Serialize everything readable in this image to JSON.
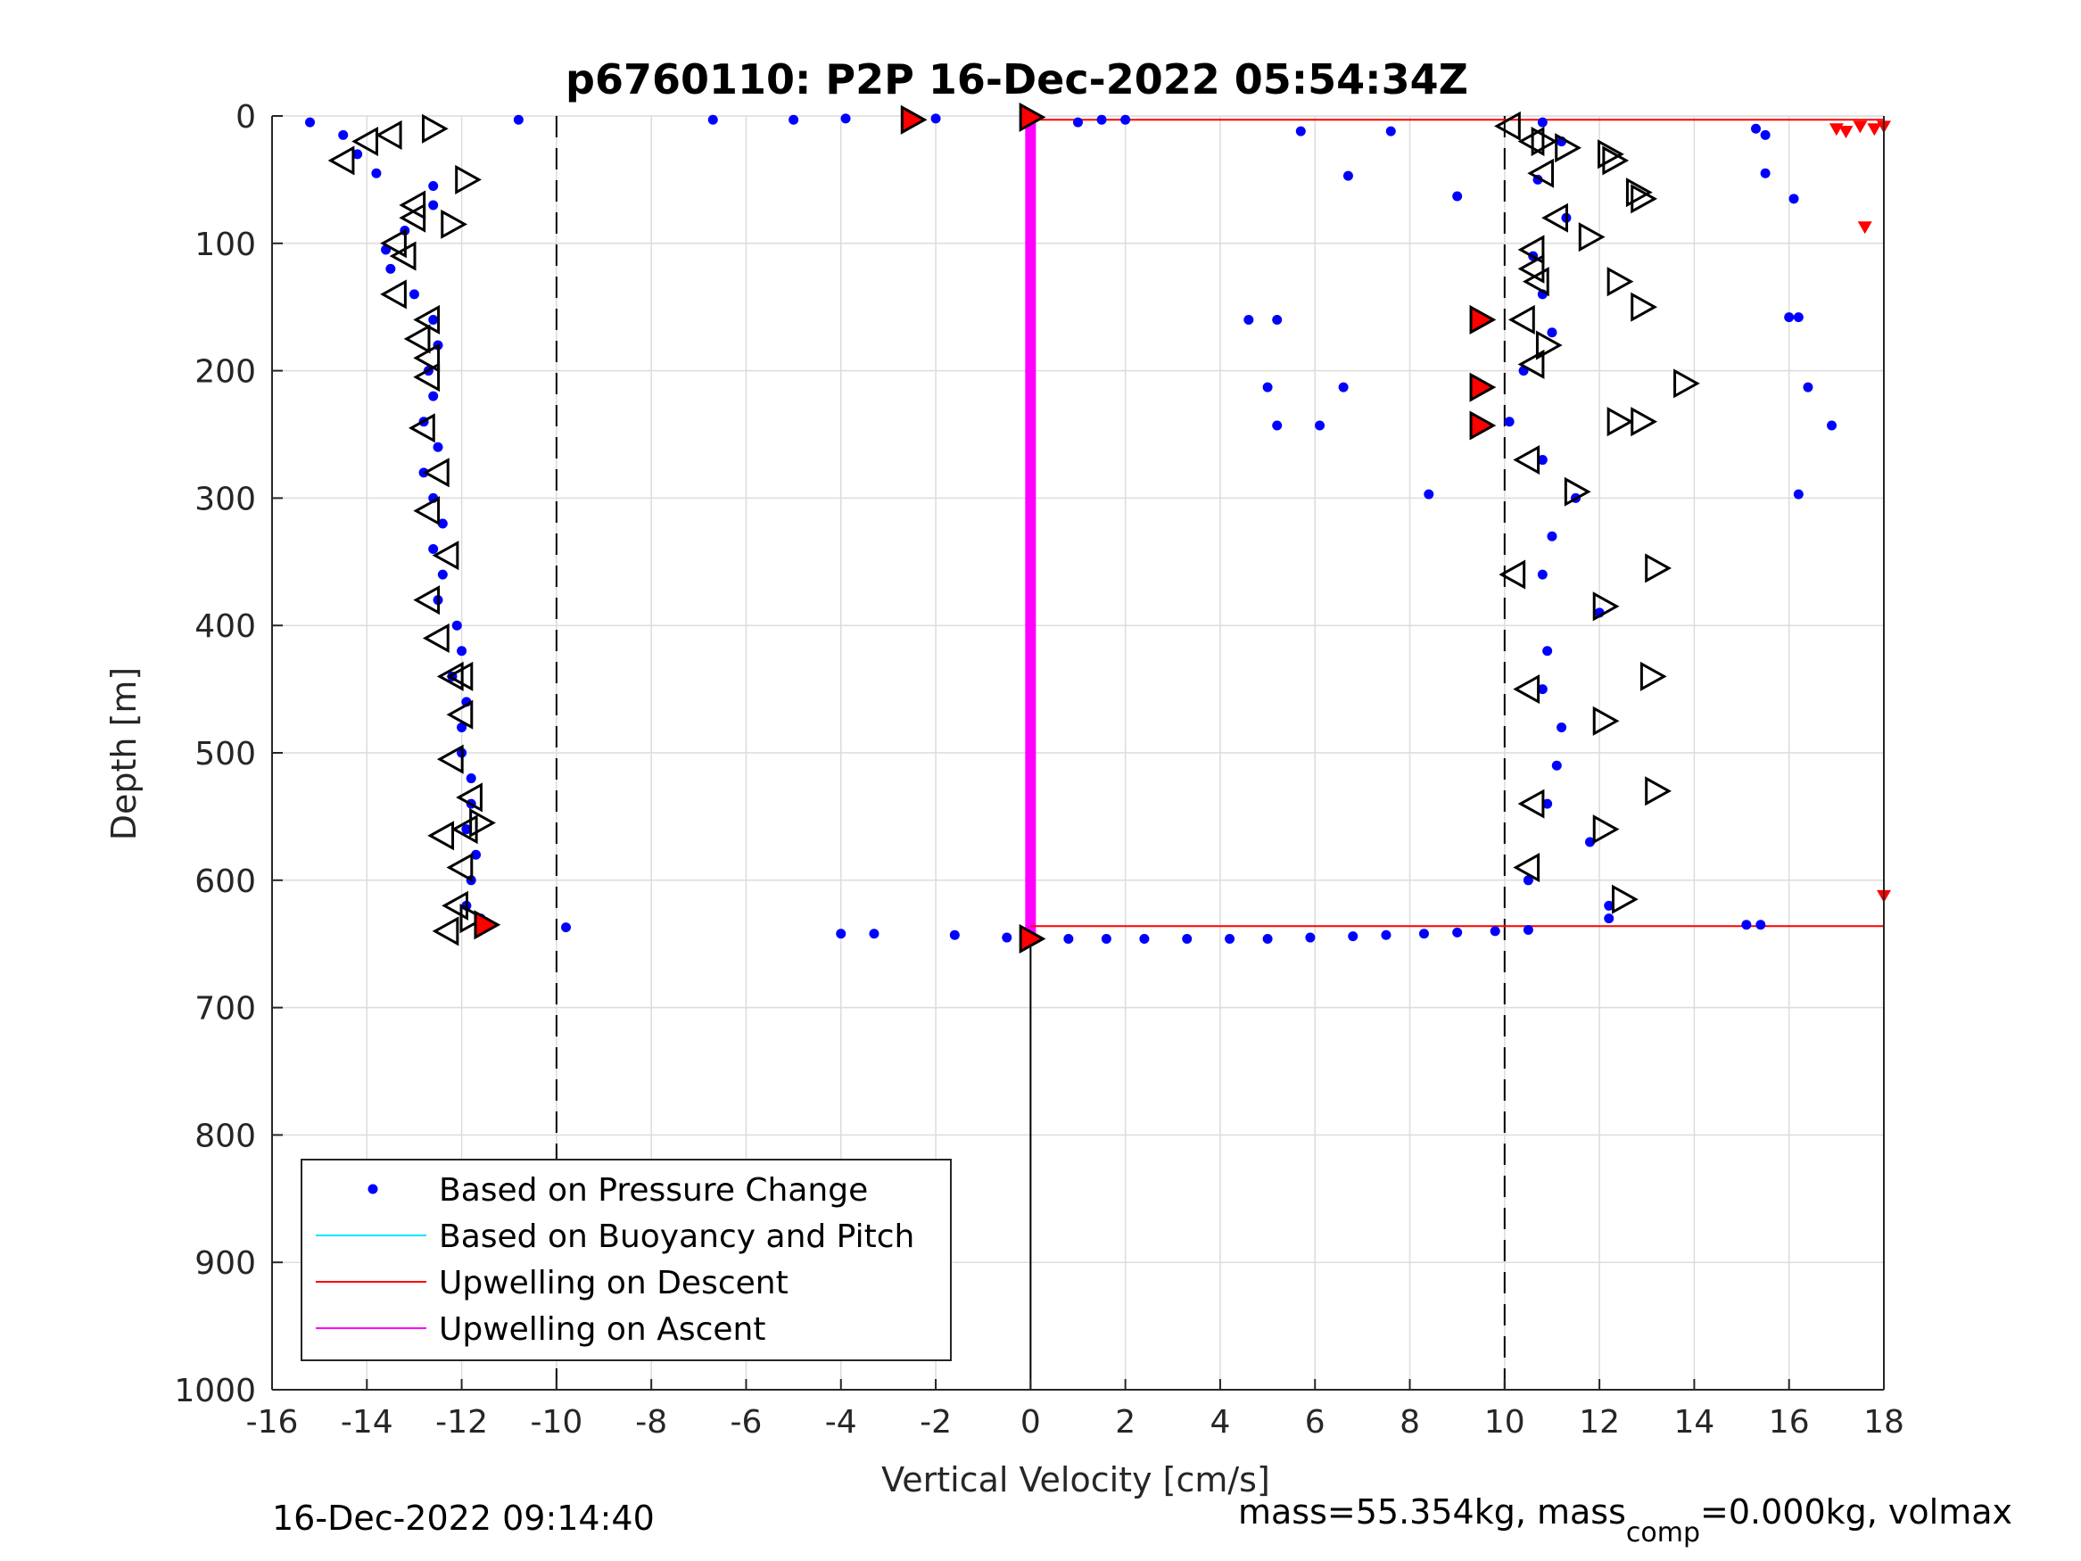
{
  "chart_data": {
    "type": "scatter",
    "title": "p6760110: P2P 16-Dec-2022 05:54:34Z",
    "xlabel": "Vertical Velocity [cm/s]",
    "ylabel": "Depth [m]",
    "xlim": [
      -16,
      18
    ],
    "ylim": [
      0,
      1000
    ],
    "y_reversed": true,
    "grid": true,
    "legend_position": "bottom-left",
    "xticks": [
      "-16",
      "-14",
      "-12",
      "-10",
      "-8",
      "-6",
      "-4",
      "-2",
      "0",
      "2",
      "4",
      "6",
      "8",
      "10",
      "12",
      "14",
      "16",
      "18"
    ],
    "yticks": [
      "0",
      "100",
      "200",
      "300",
      "400",
      "500",
      "600",
      "700",
      "800",
      "900",
      "1000"
    ],
    "reference_lines": {
      "dashed_x": [
        -10,
        10
      ],
      "solid_x": [
        0
      ]
    },
    "legend": [
      {
        "label": "Based on Pressure Change",
        "color": "#0000ff",
        "marker": "dot"
      },
      {
        "label": "Based on Buoyancy and Pitch",
        "color": "#00e5ff",
        "marker": "line"
      },
      {
        "label": "Upwelling on Descent",
        "color": "#ff0000",
        "marker": "line"
      },
      {
        "label": "Upwelling on Ascent",
        "color": "#ff00ff",
        "marker": "line"
      }
    ],
    "series": [
      {
        "name": "Based on Pressure Change",
        "color": "#0000ff",
        "branches": [
          {
            "depth": [
              5,
              15,
              30,
              45,
              55,
              70,
              90,
              105,
              120,
              140,
              160,
              180,
              200,
              220,
              240,
              260,
              280,
              300,
              320,
              340,
              360,
              380,
              400,
              420,
              440,
              460,
              480,
              500,
              520,
              540,
              560,
              580,
              600,
              620,
              630
            ],
            "velocity": [
              -15.2,
              -14.5,
              -14.2,
              -13.8,
              -12.6,
              -12.6,
              -13.2,
              -13.6,
              -13.5,
              -13.0,
              -12.6,
              -12.5,
              -12.7,
              -12.6,
              -12.8,
              -12.5,
              -12.8,
              -12.6,
              -12.4,
              -12.6,
              -12.4,
              -12.5,
              -12.1,
              -12.0,
              -12.2,
              -11.9,
              -12.0,
              -12.0,
              -11.8,
              -11.8,
              -11.9,
              -11.7,
              -11.8,
              -11.9,
              -11.6
            ]
          },
          {
            "depth": [
              5,
              20,
              50,
              80,
              110,
              140,
              170,
              200,
              240,
              270,
              300,
              330,
              360,
              390,
              420,
              450,
              480,
              510,
              540,
              570,
              600,
              620,
              630
            ],
            "velocity": [
              10.8,
              11.2,
              10.7,
              11.3,
              10.6,
              10.8,
              11.0,
              10.4,
              10.1,
              10.8,
              11.5,
              11.0,
              10.8,
              12.0,
              10.9,
              10.8,
              11.2,
              11.1,
              10.9,
              11.8,
              10.5,
              12.2,
              12.2
            ]
          },
          {
            "depth": [
              642,
              642,
              643,
              645,
              646,
              646,
              646,
              646,
              646,
              646,
              645,
              644,
              643,
              642,
              641,
              640,
              639
            ],
            "velocity": [
              -4.0,
              -3.3,
              -1.6,
              -0.5,
              0.8,
              1.6,
              2.4,
              3.3,
              4.2,
              5.0,
              5.9,
              6.8,
              7.5,
              8.3,
              9.0,
              9.8,
              10.5
            ]
          },
          {
            "depth": [
              3,
              3,
              3,
              2,
              2,
              3,
              3
            ],
            "velocity": [
              -10.8,
              -6.7,
              -5.0,
              -3.9,
              -2.0,
              1.5,
              2.0
            ]
          },
          {
            "depth": [
              160,
              160,
              213,
              213,
              243,
              243,
              297,
              63,
              47,
              5,
              12,
              12
            ],
            "velocity": [
              4.6,
              5.2,
              5.0,
              6.6,
              5.2,
              6.1,
              8.4,
              9.0,
              6.7,
              1.0,
              5.7,
              7.6
            ]
          },
          {
            "depth": [
              10,
              15,
              45,
              65,
              158,
              158,
              213,
              243,
              297,
              635,
              635,
              637
            ],
            "velocity": [
              15.3,
              15.5,
              15.5,
              16.1,
              16.0,
              16.2,
              16.4,
              16.9,
              16.2,
              15.1,
              15.4,
              -9.8
            ]
          }
        ]
      },
      {
        "name": "Upwelling on Descent",
        "color": "#ff0000",
        "segments": [
          {
            "depth": 3,
            "from": 0,
            "to": 18
          },
          {
            "depth": 636,
            "from": 0,
            "to": 18
          }
        ]
      },
      {
        "name": "Upwelling on Ascent",
        "color": "#ff00ff",
        "segments": [
          {
            "velocity": 0,
            "from": 2,
            "to": 646
          }
        ]
      },
      {
        "name": "Markers",
        "left_pointing": {
          "velocity": [
            -14.5,
            -14.0,
            -13.5,
            -13.4,
            -13.2,
            -13.4,
            -13.0,
            -13.0,
            -12.7,
            -12.9,
            -12.7,
            -12.7,
            -12.8,
            -12.5,
            -12.7,
            -12.3,
            -12.7,
            -12.5,
            -12.2,
            -12.0,
            -12.2,
            -11.9,
            -12.4,
            -12.0,
            -12.1,
            -12.3,
            -11.8,
            -12.0,
            10.1,
            10.6,
            10.8,
            11.1,
            10.6,
            10.6,
            10.7,
            10.4,
            10.6,
            10.5,
            10.2,
            10.5,
            10.6,
            10.5
          ],
          "depth": [
            35,
            20,
            15,
            100,
            110,
            140,
            70,
            80,
            160,
            175,
            190,
            205,
            245,
            280,
            310,
            345,
            380,
            410,
            440,
            470,
            505,
            560,
            565,
            590,
            620,
            640,
            535,
            440,
            8,
            20,
            45,
            80,
            105,
            120,
            130,
            160,
            195,
            270,
            360,
            450,
            540,
            590
          ]
        },
        "right_pointing": {
          "velocity": [
            -12.6,
            -11.9,
            -11.6,
            -12.2,
            -11.8,
            10.8,
            11.3,
            12.2,
            12.3,
            12.8,
            12.9,
            11.8,
            12.4,
            12.9,
            12.9,
            13.8,
            12.4,
            11.5,
            13.2,
            12.1,
            13.1,
            12.1,
            13.2,
            12.1,
            12.5,
            10.9
          ],
          "depth": [
            10,
            50,
            555,
            85,
            630,
            20,
            25,
            30,
            35,
            60,
            65,
            95,
            130,
            150,
            240,
            210,
            240,
            295,
            355,
            385,
            440,
            475,
            530,
            560,
            615,
            180
          ]
        },
        "red_filled": {
          "velocity": [
            -2.5,
            0.0,
            9.5,
            9.5,
            9.5,
            -11.5,
            0.0
          ],
          "depth": [
            3,
            1,
            160,
            213,
            243,
            635,
            646
          ]
        },
        "right_edge_red": {
          "velocity": [
            17.0,
            17.2,
            17.5,
            17.8,
            18.0,
            17.6,
            18.0
          ],
          "depth": [
            10,
            12,
            8,
            10,
            8,
            87,
            612
          ]
        }
      }
    ]
  },
  "footer": {
    "timestamp": "16-Dec-2022 09:14:40",
    "mass_text": "mass=55.354kg, mass",
    "mass_sub": "comp",
    "mass_rest": "=0.000kg, volmax"
  }
}
